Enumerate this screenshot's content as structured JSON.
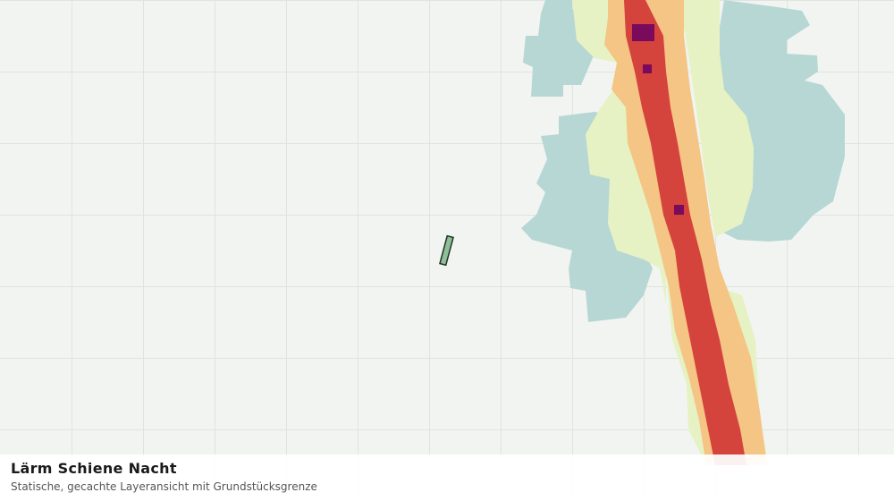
{
  "layer": {
    "title": "Lärm Schiene Nacht",
    "subtitle": "Statische, gecachte Layeransicht mit Grundstücksgrenze"
  }
}
